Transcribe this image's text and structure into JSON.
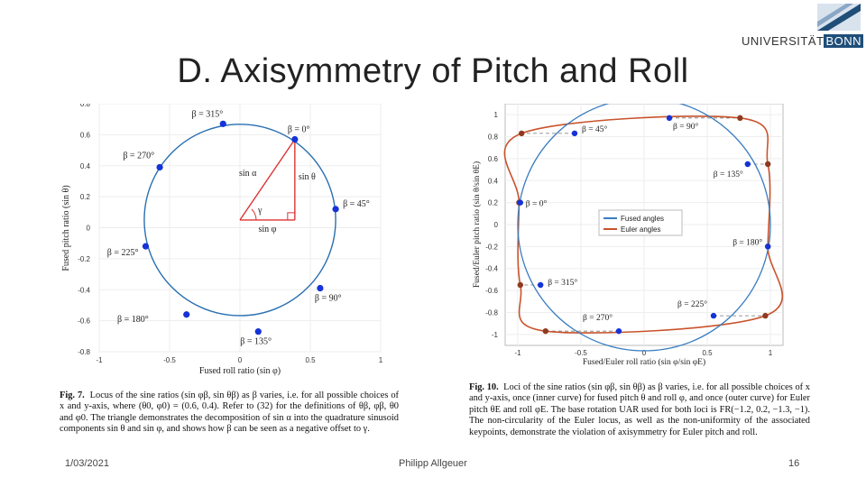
{
  "slide": {
    "title": "D. Axisymmetry of Pitch and Roll",
    "logo_word": "UNIVERSITÄT",
    "logo_box": "BONN",
    "footer_date": "1/03/2021",
    "footer_author": "Philipp Allgeuer",
    "footer_page": "16"
  },
  "fig7": {
    "caption_label": "Fig. 7.",
    "caption_text": "Locus of the sine ratios (sin φβ, sin θβ) as β varies, i.e. for all possible choices of x and y-axis, where (θ0, φ0) = (0.6, 0.4). Refer to (32) for the definitions of θβ, φβ, θ0 and φ0. The triangle demonstrates the decomposition of sin α into the quadrature sinusoid components sin θ and sin φ, and shows how β can be seen as a negative offset to γ.",
    "xlabel": "Fused roll ratio (sin φ)",
    "ylabel": "Fused pitch ratio (sin θ)",
    "triangle_labels": {
      "hyp": "sin α",
      "vert": "sin θ",
      "horiz": "sin φ",
      "angle": "γ"
    }
  },
  "fig10": {
    "caption_label": "Fig. 10.",
    "caption_text": "Loci of the sine ratios (sin φβ, sin θβ) as β varies, i.e. for all possible choices of x and y-axis, once (inner curve) for fused pitch θ and roll φ, and once (outer curve) for Euler pitch θE and roll φE. The base rotation UAR used for both loci is FR(−1.2, 0.2, −1.3, −1). The non-circularity of the Euler locus, as well as the non-uniformity of the associated keypoints, demonstrate the violation of axisymmetry for Euler pitch and roll.",
    "xlabel": "Fused/Euler roll ratio (sin φ/sin φE)",
    "ylabel": "Fused/Euler pitch ratio (sin θ/sin θE)",
    "legend": [
      {
        "label": "Fused angles",
        "color": "#3a7dc0"
      },
      {
        "label": "Euler angles",
        "color": "#c9532c"
      }
    ]
  },
  "chart_data": [
    {
      "type": "scatter",
      "title": "",
      "xlabel": "Fused roll ratio (sin φ)",
      "ylabel": "Fused pitch ratio (sin θ)",
      "xlim": [
        -1,
        1
      ],
      "ylim": [
        -0.8,
        0.8
      ],
      "x_ticks": [
        "-1",
        "-0.5",
        "0",
        "0.5",
        "1"
      ],
      "y_ticks": [
        "0.8",
        "0.6",
        "0.4",
        "0.2",
        "0",
        "-0.2",
        "-0.4",
        "-0.6",
        "-0.8"
      ],
      "circle": {
        "cx": 0,
        "cy": 0.05,
        "r": 0.68,
        "color": "#2a6fb0"
      },
      "keypoints": [
        {
          "label": "β = 0°",
          "x": 0.39,
          "y": 0.57
        },
        {
          "label": "β = 45°",
          "x": 0.68,
          "y": 0.12
        },
        {
          "label": "β = 90°",
          "x": 0.57,
          "y": -0.39
        },
        {
          "label": "β = 135°",
          "x": 0.13,
          "y": -0.67
        },
        {
          "label": "β = 180°",
          "x": -0.38,
          "y": -0.56
        },
        {
          "label": "β = 225°",
          "x": -0.67,
          "y": -0.12
        },
        {
          "label": "β = 270°",
          "x": -0.57,
          "y": 0.39
        },
        {
          "label": "β = 315°",
          "x": -0.12,
          "y": 0.67
        }
      ]
    },
    {
      "type": "line",
      "title": "",
      "xlabel": "Fused/Euler roll ratio (sin φ/sin φE)",
      "ylabel": "Fused/Euler pitch ratio (sin θ/sin θE)",
      "xlim": [
        -1.1,
        1.1
      ],
      "ylim": [
        -1.1,
        1.1
      ],
      "x_ticks": [
        "-1",
        "-0.5",
        "0",
        "0.5",
        "1"
      ],
      "y_ticks": [
        "1",
        "0.8",
        "0.6",
        "0.4",
        "0.2",
        "0",
        "-0.2",
        "-0.4",
        "-0.6",
        "-0.8",
        "-1"
      ],
      "legend_position": "center",
      "series": [
        {
          "name": "Fused angles",
          "color": "#3a7dc0",
          "keypoints": [
            {
              "label": "β = 0°",
              "x": -0.98,
              "y": 0.2
            },
            {
              "label": "β = 45°",
              "x": -0.55,
              "y": 0.83
            },
            {
              "label": "β = 90°",
              "x": 0.2,
              "y": 0.97
            },
            {
              "label": "β = 135°",
              "x": 0.82,
              "y": 0.55
            },
            {
              "label": "β = 180°",
              "x": 0.98,
              "y": -0.2
            },
            {
              "label": "β = 225°",
              "x": 0.55,
              "y": -0.83
            },
            {
              "label": "β = 270°",
              "x": -0.2,
              "y": -0.97
            },
            {
              "label": "β = 315°",
              "x": -0.82,
              "y": -0.55
            }
          ]
        },
        {
          "name": "Euler angles",
          "color": "#c9532c",
          "keypoints": [
            {
              "x": -0.99,
              "y": 0.2
            },
            {
              "x": -0.97,
              "y": 0.83
            },
            {
              "x": 0.76,
              "y": 0.97
            },
            {
              "x": 0.98,
              "y": 0.55
            },
            {
              "x": 0.98,
              "y": -0.2
            },
            {
              "x": 0.96,
              "y": -0.83
            },
            {
              "x": -0.78,
              "y": -0.97
            },
            {
              "x": -0.98,
              "y": -0.55
            }
          ]
        }
      ]
    }
  ]
}
